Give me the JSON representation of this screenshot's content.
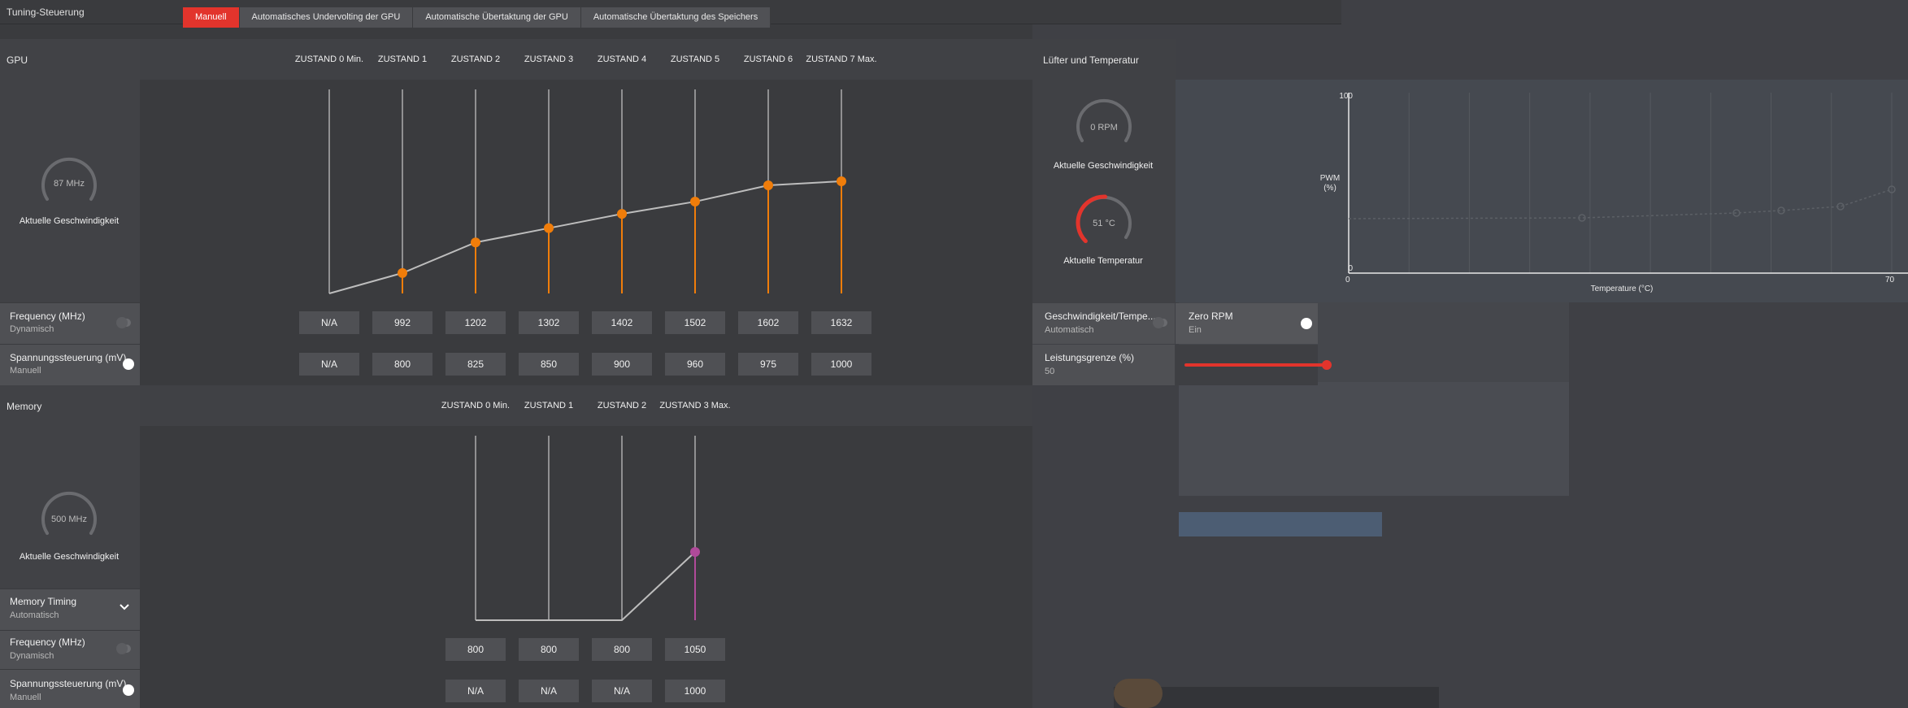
{
  "app": {
    "title": "Tuning-Steuerung"
  },
  "tabs": [
    {
      "label": "Manuell",
      "active": true
    },
    {
      "label": "Automatisches Undervolting der GPU",
      "active": false
    },
    {
      "label": "Automatische Übertaktung der GPU",
      "active": false
    },
    {
      "label": "Automatische Übertaktung des Speichers",
      "active": false
    }
  ],
  "gpu": {
    "section_label": "GPU",
    "states": [
      "ZUSTAND 0 Min.",
      "ZUSTAND 1",
      "ZUSTAND 2",
      "ZUSTAND 3",
      "ZUSTAND 4",
      "ZUSTAND 5",
      "ZUSTAND 6",
      "ZUSTAND 7 Max."
    ],
    "speed_value": "87 MHz",
    "speed_caption": "Aktuelle Geschwindigkeit",
    "frequency": {
      "title": "Frequency (MHz)",
      "mode": "Dynamisch",
      "values": [
        "N/A",
        "992",
        "1202",
        "1302",
        "1402",
        "1502",
        "1602",
        "1632"
      ]
    },
    "voltage": {
      "title": "Spannungssteuerung (mV)",
      "mode": "Manuell",
      "values": [
        "N/A",
        "800",
        "825",
        "850",
        "900",
        "960",
        "975",
        "1000"
      ]
    },
    "curve_levels": [
      0,
      0.1,
      0.25,
      0.32,
      0.39,
      0.45,
      0.53,
      0.55
    ]
  },
  "memory": {
    "section_label": "Memory",
    "states": [
      "ZUSTAND 0 Min.",
      "ZUSTAND 1",
      "ZUSTAND 2",
      "ZUSTAND 3 Max."
    ],
    "speed_value": "500 MHz",
    "speed_caption": "Aktuelle Geschwindigkeit",
    "timing": {
      "title": "Memory Timing",
      "mode": "Automatisch"
    },
    "frequency": {
      "title": "Frequency (MHz)",
      "mode": "Dynamisch",
      "values": [
        "800",
        "800",
        "800",
        "1050"
      ]
    },
    "voltage": {
      "title": "Spannungssteuerung (mV)",
      "mode": "Manuell",
      "values": [
        "N/A",
        "N/A",
        "N/A",
        "1000"
      ]
    },
    "curve_levels": [
      0,
      0,
      0,
      0.37
    ]
  },
  "fan": {
    "section_label": "Lüfter und Temperatur",
    "rpm_value": "0 RPM",
    "rpm_caption": "Aktuelle Geschwindigkeit",
    "temp_value": "51 °C",
    "temp_caption": "Aktuelle Temperatur",
    "temp_fraction": 0.51,
    "mode_title": "Geschwindigkeit/Tempe...",
    "mode_value": "Automatisch",
    "zero_rpm_title": "Zero RPM",
    "zero_rpm_value": "Ein",
    "power_title": "Leistungsgrenze (%)",
    "power_value": "50",
    "power_fraction": 0.5
  },
  "fan_chart": {
    "ylabel": "PWM",
    "yunit": "(%)",
    "xlabel": "Temperature (°C)",
    "y_max": "100",
    "y_min": "0",
    "x_min": "0",
    "x_max": "70"
  },
  "colors": {
    "accent": "#e2342c",
    "gpu_point": "#f07d0a",
    "mem_point": "#b04a9a"
  }
}
